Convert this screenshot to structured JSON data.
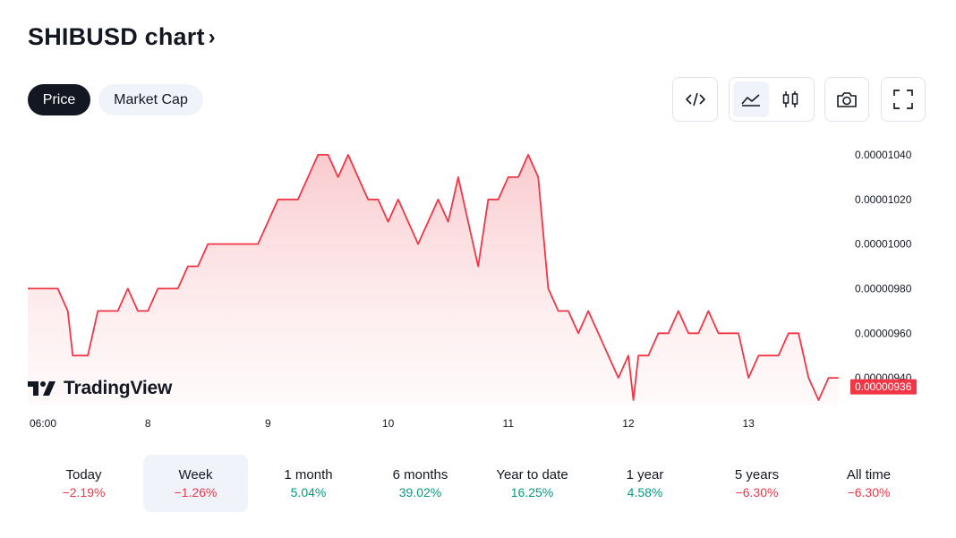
{
  "header": {
    "title": "SHIBUSD chart",
    "chevron": "›"
  },
  "tabs": [
    {
      "label": "Price",
      "active": true
    },
    {
      "label": "Market Cap",
      "active": false
    }
  ],
  "toolbar": {
    "embed_icon": "code-icon",
    "line_icon": "area-chart-icon",
    "candle_icon": "candlestick-icon",
    "snapshot_icon": "camera-icon",
    "fullscreen_icon": "fullscreen-icon"
  },
  "watermark": {
    "text": "TradingView"
  },
  "colors": {
    "line": "#f23645",
    "fill_top": "#f9c4c8",
    "positive": "#089981",
    "negative": "#f23645",
    "axis_text": "#131722",
    "price_tag_bg": "#f23645"
  },
  "chart_data": {
    "type": "area",
    "y_tick_labels": [
      "0.00001040",
      "0.00001020",
      "0.00001000",
      "0.00000980",
      "0.00000960",
      "0.00000940"
    ],
    "y_ticks": [
      1.04e-05,
      1.02e-05,
      1e-05,
      9.8e-06,
      9.6e-06,
      9.4e-06
    ],
    "ylim": [
      9.28e-06,
      1.046e-05
    ],
    "last_price_label": "0.00000936",
    "last_price": 9.36e-06,
    "x_tick_labels": [
      "06:00",
      "8",
      "9",
      "10",
      "11",
      "12",
      "13"
    ],
    "x_ticks": [
      6,
      24,
      48,
      72,
      96,
      120,
      144
    ],
    "xlim": [
      0,
      164
    ],
    "x_unit": "hours",
    "x": [
      0,
      2,
      4,
      6,
      8,
      9,
      10,
      12,
      14,
      16,
      18,
      20,
      22,
      24,
      26,
      28,
      30,
      32,
      34,
      36,
      38,
      40,
      42,
      44,
      46,
      48,
      50,
      52,
      54,
      56,
      58,
      60,
      62,
      64,
      66,
      68,
      70,
      72,
      74,
      76,
      78,
      80,
      82,
      84,
      86,
      88,
      90,
      92,
      94,
      96,
      97,
      98,
      100,
      102,
      104,
      106,
      108,
      110,
      112,
      114,
      116,
      118,
      120,
      121,
      122,
      124,
      126,
      128,
      130,
      132,
      134,
      136,
      138,
      140,
      142,
      144,
      146,
      148,
      150,
      152,
      154,
      156,
      158,
      160,
      162
    ],
    "y": [
      9.8e-06,
      9.8e-06,
      9.8e-06,
      9.8e-06,
      9.7e-06,
      9.5e-06,
      9.5e-06,
      9.5e-06,
      9.7e-06,
      9.7e-06,
      9.7e-06,
      9.8e-06,
      9.7e-06,
      9.7e-06,
      9.8e-06,
      9.8e-06,
      9.8e-06,
      9.9e-06,
      9.9e-06,
      1e-05,
      1e-05,
      1e-05,
      1e-05,
      1e-05,
      1e-05,
      1.01e-05,
      1.02e-05,
      1.02e-05,
      1.02e-05,
      1.03e-05,
      1.04e-05,
      1.04e-05,
      1.03e-05,
      1.04e-05,
      1.03e-05,
      1.02e-05,
      1.02e-05,
      1.01e-05,
      1.02e-05,
      1.01e-05,
      1e-05,
      1.01e-05,
      1.02e-05,
      1.01e-05,
      1.03e-05,
      1.01e-05,
      9.9e-06,
      1.02e-05,
      1.02e-05,
      1.03e-05,
      1.03e-05,
      1.03e-05,
      1.04e-05,
      1.03e-05,
      9.8e-06,
      9.7e-06,
      9.7e-06,
      9.6e-06,
      9.7e-06,
      9.6e-06,
      9.5e-06,
      9.4e-06,
      9.5e-06,
      9.3e-06,
      9.5e-06,
      9.5e-06,
      9.6e-06,
      9.6e-06,
      9.7e-06,
      9.6e-06,
      9.6e-06,
      9.7e-06,
      9.6e-06,
      9.6e-06,
      9.6e-06,
      9.4e-06,
      9.5e-06,
      9.5e-06,
      9.5e-06,
      9.6e-06,
      9.6e-06,
      9.4e-06,
      9.3e-06,
      9.4e-06,
      9.4e-06
    ],
    "grid": false
  },
  "ranges": [
    {
      "label": "Today",
      "change": "−2.19%",
      "direction": "down",
      "active": false
    },
    {
      "label": "Week",
      "change": "−1.26%",
      "direction": "down",
      "active": true
    },
    {
      "label": "1 month",
      "change": "5.04%",
      "direction": "up",
      "active": false
    },
    {
      "label": "6 months",
      "change": "39.02%",
      "direction": "up",
      "active": false
    },
    {
      "label": "Year to date",
      "change": "16.25%",
      "direction": "up",
      "active": false
    },
    {
      "label": "1 year",
      "change": "4.58%",
      "direction": "up",
      "active": false
    },
    {
      "label": "5 years",
      "change": "−6.30%",
      "direction": "down",
      "active": false
    },
    {
      "label": "All time",
      "change": "−6.30%",
      "direction": "down",
      "active": false
    }
  ]
}
